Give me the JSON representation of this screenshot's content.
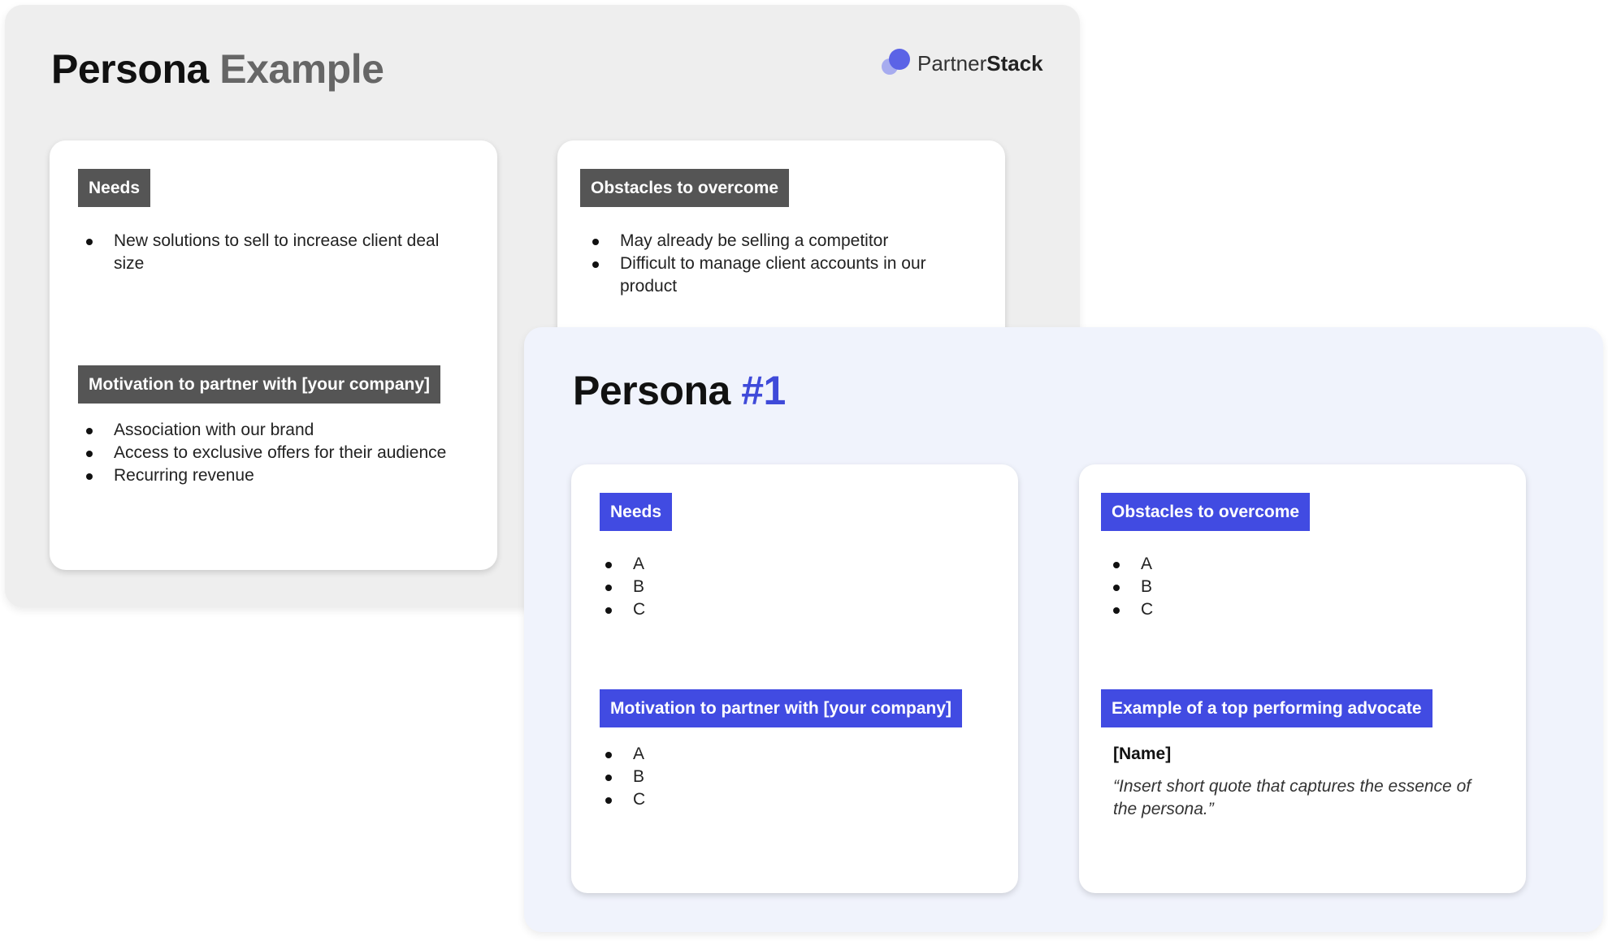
{
  "example": {
    "title_main": "Persona",
    "title_alt": "Example",
    "logo": {
      "part1": "Partner",
      "part2": "Stack"
    },
    "needs": {
      "label": "Needs",
      "items": [
        "New solutions to sell to increase client deal size"
      ]
    },
    "obstacles": {
      "label": "Obstacles to overcome",
      "items": [
        "May already be selling a competitor",
        "Difficult to manage client accounts in our product"
      ]
    },
    "motivation": {
      "label": "Motivation to partner with [your company]",
      "items": [
        "Association with our brand",
        "Access to exclusive offers for their audience",
        "Recurring revenue"
      ]
    }
  },
  "persona1": {
    "title_main": "Persona",
    "title_accent": "#1",
    "needs": {
      "label": "Needs",
      "items": [
        "A",
        "B",
        "C"
      ]
    },
    "obstacles": {
      "label": "Obstacles to overcome",
      "items": [
        "A",
        "B",
        "C"
      ]
    },
    "motivation": {
      "label": "Motivation to partner with [your company]",
      "items": [
        "A",
        "B",
        "C"
      ]
    },
    "advocate": {
      "label": "Example of a top performing advocate",
      "name": "[Name]",
      "quote": "“Insert short quote that captures the essence of the persona.”"
    }
  },
  "colors": {
    "gray_label": "#555555",
    "blue_label": "#414be2",
    "accent": "#3f4ad9",
    "gray_panel": "#eeeeee",
    "blue_panel": "#f0f3fc"
  }
}
